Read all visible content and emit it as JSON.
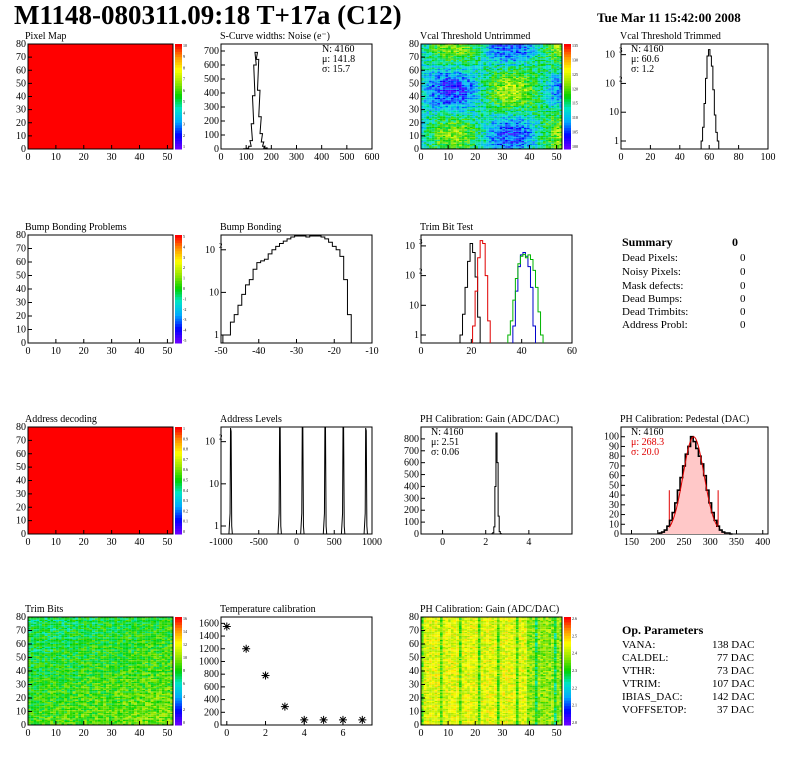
{
  "header": {
    "title": "M1148-080311.09:18 T+17a (C12)",
    "date": "Tue Mar 11 15:42:00 2008"
  },
  "colors": {
    "red": "#ff0000",
    "green": "#00cc00",
    "blue": "#0000cc",
    "black": "#000000",
    "pink": "#ffc8c8"
  },
  "summary": {
    "title": "Summary",
    "value": "0",
    "rows": [
      {
        "label": "Dead Pixels:",
        "value": "0"
      },
      {
        "label": "Noisy Pixels:",
        "value": "0"
      },
      {
        "label": "Mask defects:",
        "value": "0"
      },
      {
        "label": "Dead Bumps:",
        "value": "0"
      },
      {
        "label": "Dead Trimbits:",
        "value": "0"
      },
      {
        "label": "Address Probl:",
        "value": "0"
      }
    ]
  },
  "op_params": {
    "title": "Op. Parameters",
    "rows": [
      {
        "label": "VANA:",
        "value": "138 DAC"
      },
      {
        "label": "CALDEL:",
        "value": "77 DAC"
      },
      {
        "label": "VTHR:",
        "value": "73 DAC"
      },
      {
        "label": "VTRIM:",
        "value": "107 DAC"
      },
      {
        "label": "IBIAS_DAC:",
        "value": "142 DAC"
      },
      {
        "label": "VOFFSETOP:",
        "value": "37 DAC"
      }
    ]
  },
  "chart_data": [
    {
      "type": "heatmap",
      "title": "Pixel Map",
      "xlim": [
        0,
        52
      ],
      "ylim": [
        0,
        80
      ],
      "xticks": [
        "0",
        "10",
        "20",
        "30",
        "40",
        "50"
      ],
      "yticks": [
        "0",
        "10",
        "20",
        "30",
        "40",
        "50",
        "60",
        "70",
        "80"
      ],
      "fill": "uniform-max",
      "colorbar": {
        "ticks": [
          "10",
          "9",
          "8",
          "7",
          "6",
          "5",
          "4",
          "3",
          "2",
          "1"
        ]
      }
    },
    {
      "type": "histogram",
      "title": "S-Curve widths: Noise (e⁻)",
      "xlim": [
        0,
        600
      ],
      "ylim": [
        0,
        750
      ],
      "xticks": [
        "0",
        "100",
        "200",
        "300",
        "400",
        "500",
        "600"
      ],
      "yticks": [
        "0",
        "100",
        "200",
        "300",
        "400",
        "500",
        "600",
        "700"
      ],
      "stats": [
        "N: 4160",
        "μ: 141.8",
        "σ: 15.7"
      ],
      "series": [
        {
          "color": "black",
          "x": [
            95,
            105,
            115,
            120,
            125,
            130,
            135,
            140,
            145,
            150,
            155,
            160,
            165,
            170,
            175,
            180,
            190,
            200
          ],
          "values": [
            2,
            5,
            20,
            60,
            180,
            380,
            600,
            690,
            640,
            420,
            230,
            110,
            50,
            20,
            8,
            3,
            1,
            0
          ]
        }
      ]
    },
    {
      "type": "heatmap",
      "title": "Vcal Threshold Untrimmed",
      "xlim": [
        0,
        52
      ],
      "ylim": [
        0,
        80
      ],
      "xticks": [
        "0",
        "10",
        "20",
        "30",
        "40",
        "50"
      ],
      "yticks": [
        "0",
        "10",
        "20",
        "30",
        "40",
        "50",
        "60",
        "70",
        "80"
      ],
      "colorbar": {
        "ticks": [
          "135",
          "130",
          "125",
          "120",
          "115",
          "110",
          "105",
          "100"
        ]
      }
    },
    {
      "type": "histogram",
      "title": "Vcal Threshold Trimmed",
      "xlim": [
        0,
        100
      ],
      "log_y": true,
      "xticks": [
        "0",
        "20",
        "40",
        "60",
        "80",
        "100"
      ],
      "yticks": [
        "1",
        "10",
        "10²",
        "10³"
      ],
      "stats": [
        "N: 4160",
        "μ: 60.6",
        "σ: 1.2"
      ],
      "series": [
        {
          "color": "black",
          "x": [
            55,
            56,
            57,
            58,
            59,
            60,
            61,
            62,
            63,
            64,
            65,
            66
          ],
          "values": [
            1,
            3,
            20,
            150,
            900,
            1500,
            900,
            400,
            60,
            8,
            2,
            1
          ]
        }
      ]
    },
    {
      "type": "heatmap",
      "title": "Bump Bonding Problems",
      "xlim": [
        0,
        52
      ],
      "ylim": [
        0,
        80
      ],
      "xticks": [
        "0",
        "10",
        "20",
        "30",
        "40",
        "50"
      ],
      "yticks": [
        "0",
        "10",
        "20",
        "30",
        "40",
        "50",
        "60",
        "70",
        "80"
      ],
      "fill": "empty",
      "colorbar": {
        "ticks": [
          "5",
          "4",
          "3",
          "2",
          "1",
          "0",
          "-1",
          "-2",
          "-3",
          "-4",
          "-5"
        ]
      }
    },
    {
      "type": "histogram",
      "title": "Bump Bonding",
      "xlim": [
        -50,
        -10
      ],
      "log_y": true,
      "xticks": [
        "-50",
        "-40",
        "-30",
        "-20",
        "-10"
      ],
      "yticks": [
        "1",
        "10",
        "10²"
      ],
      "series": [
        {
          "color": "black",
          "x": [
            -49,
            -48,
            -47,
            -46,
            -45,
            -44,
            -43,
            -42,
            -41,
            -40,
            -39,
            -38,
            -37,
            -36,
            -35,
            -34,
            -33,
            -32,
            -31,
            -30,
            -29,
            -28,
            -27,
            -26,
            -25,
            -24,
            -23,
            -22,
            -21,
            -20,
            -19,
            -18,
            -17,
            -16
          ],
          "values": [
            1,
            1,
            2,
            3,
            5,
            9,
            15,
            20,
            35,
            50,
            55,
            60,
            80,
            100,
            120,
            140,
            160,
            180,
            200,
            210,
            230,
            220,
            200,
            260,
            250,
            240,
            200,
            180,
            150,
            120,
            100,
            70,
            20,
            3
          ]
        }
      ]
    },
    {
      "type": "histogram",
      "title": "Trim Bit Test",
      "xlim": [
        0,
        60
      ],
      "log_y": true,
      "xticks": [
        "0",
        "20",
        "40",
        "60"
      ],
      "yticks": [
        "1",
        "10",
        "10²",
        "10³"
      ],
      "series": [
        {
          "color": "black",
          "x": [
            16,
            17,
            18,
            19,
            20,
            21,
            22,
            23
          ],
          "values": [
            1,
            5,
            40,
            300,
            1200,
            600,
            90,
            4
          ]
        },
        {
          "color": "red",
          "x": [
            21,
            22,
            23,
            24,
            25,
            26,
            27
          ],
          "values": [
            2,
            30,
            400,
            1500,
            1200,
            100,
            3
          ]
        },
        {
          "color": "blue",
          "x": [
            37,
            38,
            39,
            40,
            41,
            42,
            43,
            44,
            45
          ],
          "values": [
            2,
            30,
            200,
            500,
            600,
            450,
            200,
            40,
            2
          ]
        },
        {
          "color": "green",
          "x": [
            35,
            36,
            37,
            38,
            39,
            40,
            41,
            42,
            43,
            44,
            45,
            46,
            47,
            48
          ],
          "values": [
            1,
            3,
            15,
            80,
            250,
            450,
            520,
            400,
            500,
            350,
            150,
            40,
            6,
            1
          ]
        }
      ]
    },
    {
      "type": "heatmap",
      "title": "Address decoding",
      "xlim": [
        0,
        52
      ],
      "ylim": [
        0,
        80
      ],
      "xticks": [
        "0",
        "10",
        "20",
        "30",
        "40",
        "50"
      ],
      "yticks": [
        "0",
        "10",
        "20",
        "30",
        "40",
        "50",
        "60",
        "70",
        "80"
      ],
      "fill": "uniform-max",
      "colorbar": {
        "ticks": [
          "1",
          "0.9",
          "0.8",
          "0.7",
          "0.6",
          "0.5",
          "0.4",
          "0.3",
          "0.2",
          "0.1",
          "0"
        ]
      }
    },
    {
      "type": "histogram",
      "title": "Address Levels",
      "xlim": [
        -1000,
        1000
      ],
      "log_y": true,
      "xticks": [
        "-1000",
        "-500",
        "0",
        "500",
        "1000"
      ],
      "yticks": [
        "1",
        "10",
        "10²"
      ],
      "series": [
        {
          "color": "black",
          "peaks": [
            -870,
            -220,
            80,
            380,
            620,
            920
          ],
          "heights": [
            250,
            300,
            350,
            380,
            320,
            260
          ]
        }
      ]
    },
    {
      "type": "histogram",
      "title": "PH Calibration: Gain (ADC/DAC)",
      "xlim": [
        -1,
        6
      ],
      "ylim": [
        0,
        900
      ],
      "xticks": [
        "0",
        "2",
        "4"
      ],
      "yticks": [
        "0",
        "100",
        "200",
        "300",
        "400",
        "500",
        "600",
        "700",
        "800"
      ],
      "stats": [
        "N: 4160",
        "μ: 2.51",
        "σ: 0.06"
      ],
      "series": [
        {
          "color": "black",
          "x": [
            2.3,
            2.35,
            2.4,
            2.45,
            2.5,
            2.55,
            2.6,
            2.65,
            2.7
          ],
          "values": [
            2,
            10,
            60,
            400,
            850,
            600,
            150,
            20,
            3
          ]
        }
      ]
    },
    {
      "type": "histogram",
      "title": "PH Calibration: Pedestal (DAC)",
      "xlim": [
        130,
        410
      ],
      "ylim": [
        0,
        110
      ],
      "xticks": [
        "150",
        "200",
        "250",
        "300",
        "350",
        "400"
      ],
      "yticks": [
        "0",
        "10",
        "20",
        "30",
        "40",
        "50",
        "60",
        "70",
        "80",
        "90",
        "100"
      ],
      "stats": [
        "N: 4160",
        "μ: 268.3",
        "σ: 20.0"
      ],
      "fit_range": [
        222,
        315
      ],
      "series": [
        {
          "color": "black",
          "x": [
            205,
            210,
            215,
            220,
            225,
            230,
            235,
            240,
            245,
            250,
            255,
            260,
            265,
            270,
            275,
            280,
            285,
            290,
            295,
            300,
            305,
            310,
            315,
            320,
            325,
            330,
            335,
            340
          ],
          "values": [
            1,
            2,
            4,
            8,
            14,
            22,
            32,
            45,
            58,
            70,
            82,
            90,
            100,
            95,
            88,
            80,
            72,
            60,
            45,
            32,
            22,
            14,
            8,
            4,
            2,
            1,
            1,
            0
          ]
        }
      ]
    },
    {
      "type": "heatmap",
      "title": "Trim Bits",
      "xlim": [
        0,
        52
      ],
      "ylim": [
        0,
        80
      ],
      "xticks": [
        "0",
        "10",
        "20",
        "30",
        "40",
        "50"
      ],
      "yticks": [
        "0",
        "10",
        "20",
        "30",
        "40",
        "50",
        "60",
        "70",
        "80"
      ],
      "colorbar": {
        "ticks": [
          "16",
          "14",
          "12",
          "10",
          "8",
          "6",
          "4",
          "2",
          "0"
        ]
      }
    },
    {
      "type": "scatter",
      "title": "Temperature calibration",
      "xlim": [
        -0.3,
        7.5
      ],
      "ylim": [
        0,
        1700
      ],
      "xticks": [
        "0",
        "2",
        "4",
        "6"
      ],
      "yticks": [
        "0",
        "200",
        "400",
        "600",
        "800",
        "1000",
        "1200",
        "1400",
        "1600"
      ],
      "x": [
        0,
        1,
        2,
        3,
        4,
        5,
        6,
        7
      ],
      "values": [
        1550,
        1200,
        780,
        290,
        80,
        80,
        80,
        80
      ]
    },
    {
      "type": "heatmap",
      "title": "PH Calibration: Gain (ADC/DAC)",
      "xlim": [
        0,
        52
      ],
      "ylim": [
        0,
        80
      ],
      "xticks": [
        "0",
        "10",
        "20",
        "30",
        "40",
        "50"
      ],
      "yticks": [
        "0",
        "10",
        "20",
        "30",
        "40",
        "50",
        "60",
        "70",
        "80"
      ],
      "colorbar": {
        "ticks": [
          "2.6",
          "2.5",
          "2.4",
          "2.3",
          "2.2",
          "2.1",
          "2.0"
        ]
      }
    }
  ]
}
